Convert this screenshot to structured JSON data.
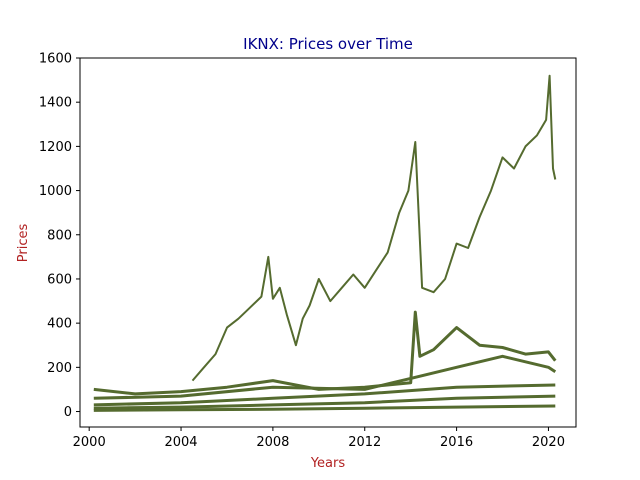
{
  "chart_data": {
    "type": "line",
    "title": "IKNX: Prices over Time",
    "xlabel": "Years",
    "ylabel": "Prices",
    "xlim": [
      1999.6,
      2021.2
    ],
    "ylim": [
      -70,
      1600
    ],
    "x_ticks": [
      "2000",
      "2004",
      "2008",
      "2012",
      "2016",
      "2020"
    ],
    "y_ticks": [
      "0",
      "200",
      "400",
      "600",
      "800",
      "1000",
      "1200",
      "1400",
      "1600"
    ],
    "grid": false,
    "legend": "none",
    "colors": {
      "series": "#556b2f",
      "title": "#00008b",
      "axis_labels": "#b22222",
      "axes": "#000000"
    },
    "series": [
      {
        "x": [
          2004.5,
          2005.0,
          2005.5,
          2006.0,
          2006.5,
          2007.0,
          2007.5,
          2007.8,
          2008.0,
          2008.3,
          2008.6,
          2009.0,
          2009.3,
          2009.6,
          2010.0,
          2010.5,
          2011.0,
          2011.5,
          2012.0,
          2012.5,
          2013.0,
          2013.5,
          2013.9,
          2014.2,
          2014.5,
          2015.0,
          2015.5,
          2016.0,
          2016.5,
          2017.0,
          2017.5,
          2018.0,
          2018.5,
          2019.0,
          2019.5,
          2019.9,
          2020.05,
          2020.2,
          2020.3
        ],
        "y": [
          140,
          200,
          260,
          380,
          420,
          470,
          520,
          700,
          510,
          560,
          440,
          300,
          420,
          480,
          600,
          500,
          560,
          620,
          560,
          640,
          720,
          900,
          1000,
          1220,
          560,
          540,
          600,
          760,
          740,
          880,
          1000,
          1150,
          1100,
          1200,
          1250,
          1320,
          1520,
          1100,
          1050
        ]
      },
      {
        "x": [
          2000.2,
          2002.0,
          2004.0,
          2006.0,
          2008.0,
          2010.0,
          2012.0,
          2014.0,
          2014.2,
          2014.4,
          2015.0,
          2016.0,
          2017.0,
          2018.0,
          2019.0,
          2020.0,
          2020.3
        ],
        "y": [
          100,
          80,
          90,
          110,
          140,
          100,
          110,
          130,
          450,
          250,
          280,
          380,
          300,
          290,
          260,
          270,
          230
        ]
      },
      {
        "x": [
          2000.2,
          2004.0,
          2008.0,
          2012.0,
          2014.0,
          2016.0,
          2018.0,
          2020.0,
          2020.3
        ],
        "y": [
          60,
          70,
          110,
          100,
          150,
          200,
          250,
          200,
          180
        ]
      },
      {
        "x": [
          2000.2,
          2004.0,
          2008.0,
          2012.0,
          2016.0,
          2020.3
        ],
        "y": [
          30,
          40,
          60,
          80,
          110,
          120
        ]
      },
      {
        "x": [
          2000.2,
          2004.0,
          2008.0,
          2012.0,
          2016.0,
          2020.3
        ],
        "y": [
          15,
          20,
          30,
          40,
          60,
          70
        ]
      },
      {
        "x": [
          2000.2,
          2004.0,
          2008.0,
          2012.0,
          2016.0,
          2020.3
        ],
        "y": [
          5,
          8,
          10,
          15,
          20,
          25
        ]
      }
    ]
  }
}
